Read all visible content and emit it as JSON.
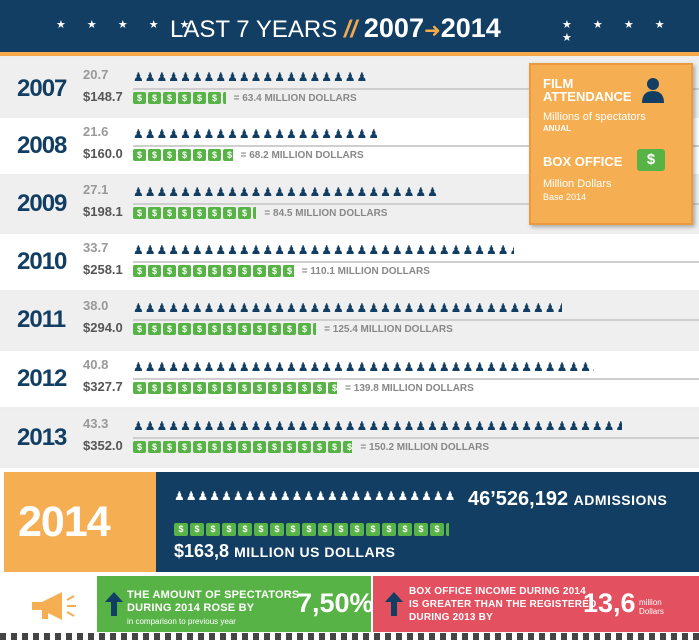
{
  "header": {
    "title": "LAST 7 YEARS",
    "separator": "//",
    "year_start": "2007",
    "year_end": "2014",
    "star_groups": [
      "★ ★ ★ ★ ★",
      "★ ★ ★ ★ ★"
    ]
  },
  "legend": {
    "attendance_title_1": "FILM",
    "attendance_title_2": "ATTENDANCE",
    "attendance_sub": "Millions of spectators",
    "attendance_small": "ANUAL",
    "box_title": "BOX OFFICE",
    "box_sub": "Million Dollars",
    "box_small": "Base 2014",
    "dollar_glyph": "$"
  },
  "rows": [
    {
      "year": "2007",
      "attendance": "20.7",
      "box_office": "$148.7",
      "note": "= 63.4 MILLION DOLLARS"
    },
    {
      "year": "2008",
      "attendance": "21.6",
      "box_office": "$160.0",
      "note": "= 68.2 MILLION DOLLARS"
    },
    {
      "year": "2009",
      "attendance": "27.1",
      "box_office": "$198.1",
      "note": "= 84.5 MILLION DOLLARS"
    },
    {
      "year": "2010",
      "attendance": "33.7",
      "box_office": "$258.1",
      "note": "= 110.1 MILLION DOLLARS"
    },
    {
      "year": "2011",
      "attendance": "38.0",
      "box_office": "$294.0",
      "note": "= 125.4 MILLION DOLLARS"
    },
    {
      "year": "2012",
      "attendance": "40.8",
      "box_office": "$327.7",
      "note": "= 139.8 MILLION DOLLARS"
    },
    {
      "year": "2013",
      "attendance": "43.3",
      "box_office": "$352.0",
      "note": "= 150.2 MILLION DOLLARS"
    }
  ],
  "highlight": {
    "year": "2014",
    "admissions_value": "46’526,192",
    "admissions_unit": "ADMISSIONS",
    "usd_value": "$163,8",
    "usd_unit": "MILLION US DOLLARS"
  },
  "facts": {
    "spectators_line1": "THE AMOUNT OF SPECTATORS",
    "spectators_line2": "DURING 2014 ROSE BY",
    "spectators_small": "in comparison to previous year",
    "spectators_value": "7,50%",
    "box_line1": "BOX OFFICE INCOME DURING 2014",
    "box_line2": "IS GREATER THAN THE REGISTERED",
    "box_line3": "DURING 2013 BY",
    "box_value": "13,6",
    "box_unit_1": "million",
    "box_unit_2": "Dollars"
  },
  "colors": {
    "navy": "#123e63",
    "orange": "#f6ae52",
    "green": "#58b346",
    "red": "#e3505f"
  },
  "chart_data": {
    "type": "bar",
    "categories": [
      "2007",
      "2008",
      "2009",
      "2010",
      "2011",
      "2012",
      "2013",
      "2014"
    ],
    "series": [
      {
        "name": "FILM ATTENDANCE",
        "values": [
          20.7,
          21.6,
          27.1,
          33.7,
          38.0,
          40.8,
          43.3,
          46.526192
        ]
      },
      {
        "name": "BOX OFFICE",
        "values": [
          63.4,
          68.2,
          84.5,
          110.1,
          125.4,
          139.8,
          150.2,
          163.8
        ]
      }
    ],
    "box_office_local": [
      148.7,
      160.0,
      198.1,
      258.1,
      294.0,
      327.7,
      352.0
    ],
    "title": "LAST 7 YEARS // 2007 → 2014"
  }
}
